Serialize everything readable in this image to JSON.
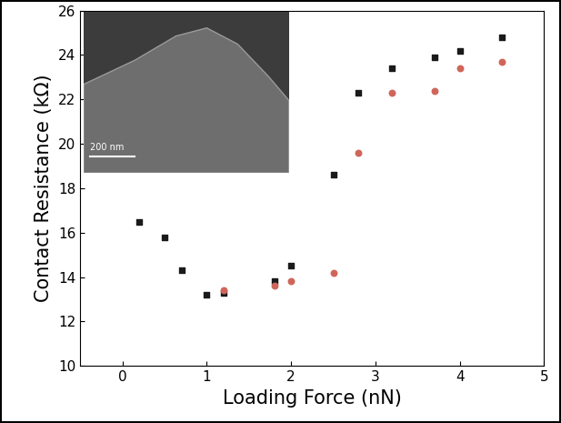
{
  "chart_data": {
    "type": "scatter",
    "x_label": "Loading Force (nN)",
    "y_label": "Contact Resistance (kΩ)",
    "annotations": [
      "200 nm"
    ],
    "series": [
      {
        "color": "#1a1a1a",
        "marker": "square",
        "x": [
          0.2,
          0.5,
          0.7,
          1.0,
          1.2,
          1.8,
          2.0,
          2.5,
          2.8,
          3.2,
          3.7,
          4.0,
          4.5
        ],
        "values": [
          16.5,
          15.8,
          14.3,
          13.2,
          13.3,
          13.8,
          14.5,
          18.6,
          22.3,
          23.4,
          23.9,
          24.2,
          24.8
        ]
      },
      {
        "color": "#d0655a",
        "marker": "circle",
        "x": [
          1.2,
          1.8,
          2.0,
          2.5,
          2.8,
          3.2,
          3.7,
          4.0,
          4.5
        ],
        "values": [
          13.4,
          13.6,
          13.8,
          14.2,
          19.6,
          22.3,
          22.4,
          23.4,
          23.7
        ]
      }
    ],
    "xlim": [
      -0.5,
      5
    ],
    "xticks": [
      0,
      1,
      2,
      3,
      4,
      5
    ],
    "ylim": [
      10,
      26
    ],
    "yticks": [
      10,
      12,
      14,
      16,
      18,
      20,
      22,
      24,
      26
    ],
    "grid": false
  }
}
